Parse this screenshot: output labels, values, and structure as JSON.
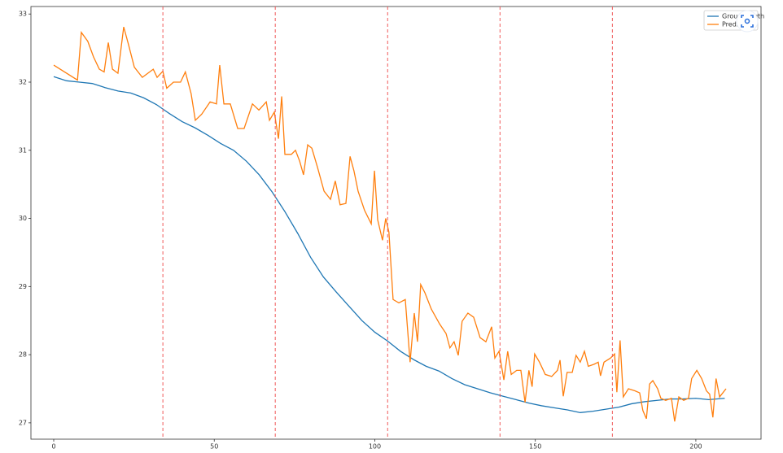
{
  "chart_data": {
    "type": "line",
    "xlim": [
      -7.1,
      220.3
    ],
    "ylim": [
      26.76,
      33.11
    ],
    "xticks": [
      0,
      50,
      100,
      150,
      200
    ],
    "yticks": [
      27,
      28,
      29,
      30,
      31,
      32,
      33
    ],
    "grid": false,
    "legend": "upper right",
    "vlines": [
      34,
      69,
      104,
      139,
      174
    ],
    "vline_color": "#f05a5a",
    "series": [
      {
        "name": "Ground Truth",
        "color": "#1f77b4",
        "x": [
          0,
          4,
          8,
          12,
          16,
          20,
          24,
          28,
          32,
          36,
          40,
          44,
          48,
          52,
          56,
          60,
          64,
          68,
          72,
          76,
          80,
          84,
          88,
          92,
          96,
          100,
          104,
          108,
          112,
          116,
          120,
          124,
          128,
          132,
          136,
          140,
          144,
          148,
          152,
          156,
          160,
          164,
          168,
          172,
          176,
          180,
          184,
          188,
          192,
          196,
          200,
          204,
          209
        ],
        "values": [
          32.08,
          32.02,
          32.0,
          31.98,
          31.92,
          31.87,
          31.84,
          31.77,
          31.67,
          31.54,
          31.42,
          31.33,
          31.22,
          31.1,
          31.0,
          30.84,
          30.64,
          30.39,
          30.1,
          29.78,
          29.43,
          29.14,
          28.92,
          28.71,
          28.5,
          28.33,
          28.2,
          28.05,
          27.93,
          27.83,
          27.76,
          27.65,
          27.56,
          27.5,
          27.44,
          27.39,
          27.34,
          27.29,
          27.25,
          27.22,
          27.19,
          27.15,
          27.17,
          27.2,
          27.23,
          27.28,
          27.31,
          27.33,
          27.35,
          27.35,
          27.36,
          27.34,
          27.36
        ]
      },
      {
        "name": "Prediction",
        "color": "#ff7f0e",
        "x": [
          0,
          7.4,
          8.6,
          10.6,
          12.4,
          14.2,
          15.7,
          17,
          18.3,
          20,
          21.8,
          23.3,
          25.1,
          27.6,
          31,
          32.2,
          34,
          35.2,
          37.3,
          39.5,
          41,
          42.8,
          44.1,
          46.1,
          48.7,
          50.7,
          51.7,
          53,
          55,
          57.3,
          59.3,
          61.9,
          63.9,
          66.2,
          67.2,
          68.7,
          70,
          71,
          72,
          74,
          75.3,
          76.6,
          77.8,
          79.1,
          80.4,
          82.1,
          84.2,
          86.2,
          87.7,
          89.2,
          91,
          92.3,
          93.5,
          94.8,
          96.8,
          98.9,
          99.9,
          100.9,
          102.4,
          103.4,
          104.4,
          105.7,
          107.5,
          109.5,
          111,
          112.3,
          113.3,
          114.3,
          115.6,
          117.6,
          120.2,
          122.2,
          123.4,
          124.7,
          126,
          127.2,
          129,
          130.8,
          132.8,
          134.6,
          136.4,
          137.4,
          138.7,
          140.2,
          141.4,
          142.5,
          144.2,
          145.5,
          146.8,
          148,
          149,
          149.8,
          151.3,
          153.1,
          155.1,
          156.9,
          157.7,
          158.7,
          159.9,
          161.5,
          162.7,
          164,
          165.3,
          166.5,
          168.3,
          169.6,
          170.3,
          171.4,
          173.4,
          174.7,
          175.4,
          176.4,
          177.4,
          179,
          181,
          182.5,
          183.5,
          184.6,
          185.6,
          186.6,
          188.1,
          189.1,
          190.6,
          192.4,
          193.4,
          194.7,
          196.2,
          197.7,
          198.7,
          200.3,
          201.8,
          203.3,
          204.3,
          205.3,
          206.3,
          207.4,
          209.4
        ],
        "values": [
          32.25,
          32.03,
          32.73,
          32.6,
          32.37,
          32.19,
          32.15,
          32.58,
          32.19,
          32.13,
          32.81,
          32.55,
          32.22,
          32.07,
          32.19,
          32.07,
          32.16,
          31.91,
          32.0,
          32.0,
          32.15,
          31.83,
          31.44,
          31.53,
          31.71,
          31.68,
          32.25,
          31.68,
          31.68,
          31.32,
          31.32,
          31.68,
          31.59,
          31.71,
          31.44,
          31.56,
          31.17,
          31.79,
          30.94,
          30.94,
          31.0,
          30.84,
          30.64,
          31.08,
          31.03,
          30.76,
          30.4,
          30.28,
          30.55,
          30.2,
          30.22,
          30.91,
          30.7,
          30.4,
          30.12,
          29.92,
          30.7,
          29.98,
          29.68,
          30.0,
          29.8,
          28.81,
          28.76,
          28.81,
          27.89,
          28.61,
          28.19,
          29.03,
          28.91,
          28.67,
          28.45,
          28.31,
          28.1,
          28.19,
          27.99,
          28.49,
          28.61,
          28.55,
          28.25,
          28.19,
          28.41,
          27.95,
          28.05,
          27.63,
          28.05,
          27.71,
          27.77,
          27.77,
          27.3,
          27.77,
          27.53,
          28.01,
          27.89,
          27.71,
          27.68,
          27.77,
          27.92,
          27.39,
          27.74,
          27.74,
          27.99,
          27.89,
          28.05,
          27.83,
          27.86,
          27.89,
          27.69,
          27.89,
          27.95,
          28.01,
          27.45,
          28.21,
          27.38,
          27.5,
          27.47,
          27.44,
          27.18,
          27.06,
          27.57,
          27.62,
          27.5,
          27.36,
          27.33,
          27.36,
          27.02,
          27.38,
          27.33,
          27.36,
          27.65,
          27.77,
          27.65,
          27.47,
          27.42,
          27.08,
          27.65,
          27.38,
          27.5
        ]
      }
    ]
  }
}
